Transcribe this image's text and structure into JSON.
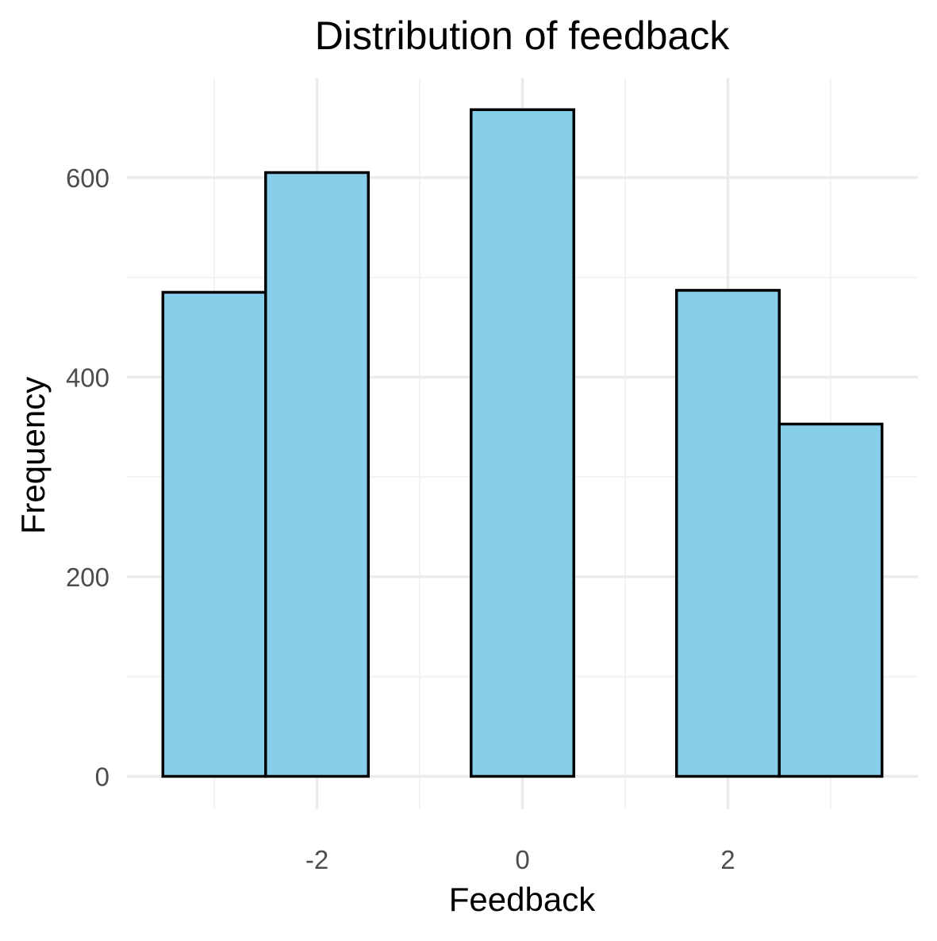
{
  "chart_data": {
    "type": "bar",
    "title": "Distribution of feedback",
    "xlabel": "Feedback",
    "ylabel": "Frequency",
    "bin_width": 1,
    "bins": [
      {
        "center": -3,
        "value": 485
      },
      {
        "center": -2,
        "value": 605
      },
      {
        "center": -1,
        "value": 0
      },
      {
        "center": 0,
        "value": 668
      },
      {
        "center": 1,
        "value": 0
      },
      {
        "center": 2,
        "value": 487
      },
      {
        "center": 3,
        "value": 353
      }
    ],
    "xlim": [
      -3.85,
      3.85
    ],
    "ylim": [
      -33,
      700
    ],
    "x_ticks": [
      -2,
      0,
      2
    ],
    "x_tick_labels": [
      "-2",
      "0",
      "2"
    ],
    "x_minor_ticks": [
      -3,
      -1,
      1,
      3
    ],
    "y_ticks": [
      0,
      200,
      400,
      600
    ],
    "y_tick_labels": [
      "0",
      "200",
      "400",
      "600"
    ],
    "y_minor_ticks": [
      100,
      300,
      500
    ],
    "grid": true,
    "colors": {
      "bar_fill": "#87CEEB",
      "bar_stroke": "#000000",
      "grid_major": "#EBEBEB",
      "grid_minor": "#F3F3F3",
      "tick_text": "#4D4D4D",
      "title_text": "#000000"
    }
  }
}
